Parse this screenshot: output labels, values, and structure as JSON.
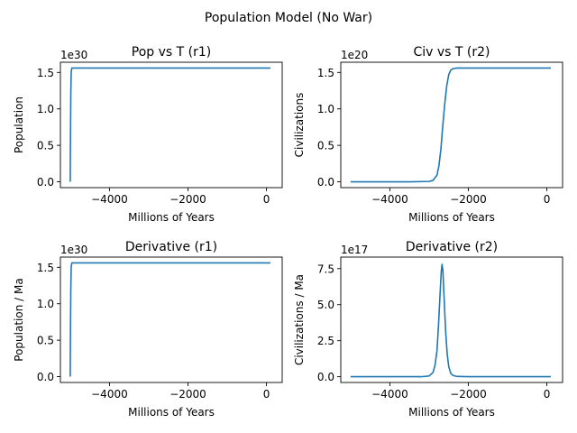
{
  "figure": {
    "title": "Population Model (No War)"
  },
  "chart_data": [
    {
      "type": "line",
      "title": "Pop vs T (r1)",
      "xlabel": "Millions of Years",
      "ylabel": "Population",
      "offset_label": "1e30",
      "xlim": [
        -5250,
        400
      ],
      "ylim": [
        -0.08,
        1.64
      ],
      "x_ticks": [
        -4000,
        -2000,
        0
      ],
      "x_tick_labels": [
        "−4000",
        "−2000",
        "0"
      ],
      "y_ticks": [
        0.0,
        0.5,
        1.0,
        1.5
      ],
      "y_tick_labels": [
        "0.0",
        "0.5",
        "1.0",
        "1.5"
      ],
      "grid": false,
      "color": "#1f77b4",
      "series": [
        {
          "x": [
            -5000,
            -4995,
            -4985,
            -4975,
            -4960,
            -4900,
            -4000,
            -3000,
            -2000,
            -1000,
            0,
            100
          ],
          "values": [
            0.0,
            0.5,
            1.2,
            1.5,
            1.56,
            1.56,
            1.56,
            1.56,
            1.56,
            1.56,
            1.56,
            1.56
          ]
        }
      ]
    },
    {
      "type": "line",
      "title": "Civ vs T (r2)",
      "xlabel": "Millions of Years",
      "ylabel": "Civilizations",
      "offset_label": "1e20",
      "xlim": [
        -5250,
        400
      ],
      "ylim": [
        -0.08,
        1.64
      ],
      "x_ticks": [
        -4000,
        -2000,
        0
      ],
      "x_tick_labels": [
        "−4000",
        "−2000",
        "0"
      ],
      "y_ticks": [
        0.0,
        0.5,
        1.0,
        1.5
      ],
      "y_tick_labels": [
        "0.0",
        "0.5",
        "1.0",
        "1.5"
      ],
      "grid": false,
      "color": "#1f77b4",
      "series": [
        {
          "x": [
            -5000,
            -3500,
            -3000,
            -2900,
            -2800,
            -2750,
            -2700,
            -2650,
            -2600,
            -2550,
            -2500,
            -2450,
            -2400,
            -2300,
            -2000,
            -1000,
            0,
            100
          ],
          "values": [
            0.0,
            0.0,
            0.005,
            0.02,
            0.09,
            0.22,
            0.45,
            0.78,
            1.08,
            1.32,
            1.47,
            1.53,
            1.55,
            1.56,
            1.56,
            1.56,
            1.56,
            1.56
          ]
        }
      ]
    },
    {
      "type": "line",
      "title": "Derivative (r1)",
      "xlabel": "Millions of Years",
      "ylabel": "Population / Ma",
      "offset_label": "1e30",
      "xlim": [
        -5250,
        400
      ],
      "ylim": [
        -0.08,
        1.64
      ],
      "x_ticks": [
        -4000,
        -2000,
        0
      ],
      "x_tick_labels": [
        "−4000",
        "−2000",
        "0"
      ],
      "y_ticks": [
        0.0,
        0.5,
        1.0,
        1.5
      ],
      "y_tick_labels": [
        "0.0",
        "0.5",
        "1.0",
        "1.5"
      ],
      "grid": false,
      "color": "#1f77b4",
      "series": [
        {
          "x": [
            -5000,
            -4995,
            -4985,
            -4975,
            -4960,
            -4900,
            -4000,
            -3000,
            -2000,
            -1000,
            0,
            100
          ],
          "values": [
            0.0,
            0.5,
            1.2,
            1.5,
            1.56,
            1.56,
            1.56,
            1.56,
            1.56,
            1.56,
            1.56,
            1.56
          ]
        }
      ]
    },
    {
      "type": "line",
      "title": "Derivative (r2)",
      "xlabel": "Millions of Years",
      "ylabel": "Civilizations / Ma",
      "offset_label": "1e17",
      "xlim": [
        -5250,
        400
      ],
      "ylim": [
        -0.4,
        8.3
      ],
      "x_ticks": [
        -4000,
        -2000,
        0
      ],
      "x_tick_labels": [
        "−4000",
        "−2000",
        "0"
      ],
      "y_ticks": [
        0.0,
        2.5,
        5.0,
        7.5
      ],
      "y_tick_labels": [
        "0.0",
        "2.5",
        "5.0",
        "7.5"
      ],
      "grid": false,
      "color": "#1f77b4",
      "series": [
        {
          "x": [
            -5000,
            -3200,
            -3000,
            -2900,
            -2850,
            -2800,
            -2760,
            -2720,
            -2690,
            -2670,
            -2650,
            -2620,
            -2580,
            -2540,
            -2500,
            -2450,
            -2400,
            -2300,
            -2000,
            -1000,
            0,
            100
          ],
          "values": [
            0.0,
            0.0,
            0.05,
            0.3,
            0.8,
            1.8,
            3.6,
            5.8,
            7.3,
            7.8,
            7.4,
            5.6,
            3.2,
            1.6,
            0.7,
            0.25,
            0.1,
            0.02,
            0.0,
            0.0,
            0.0,
            0.0
          ]
        }
      ]
    }
  ]
}
